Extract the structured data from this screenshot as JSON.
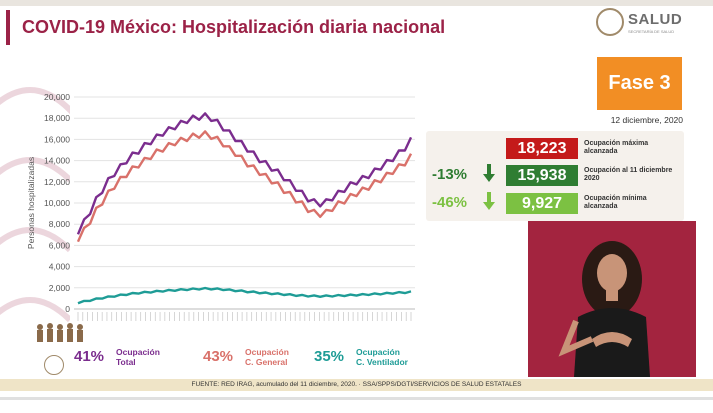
{
  "title": "COVID-19 México: Hospitalización diaria nacional",
  "logo": {
    "word": "SALUD",
    "sub": "SECRETARÍA DE SALUD"
  },
  "phase": "Fase 3",
  "date": "12 diciembre, 2020",
  "stats": {
    "max": {
      "value": "18,223",
      "label": "Ocupación máxima alcanzada",
      "color": "#c41a1a"
    },
    "current": {
      "pct": "-13%",
      "value": "15,938",
      "label": "Ocupación al 11 diciembre 2020",
      "color": "#2f7d32"
    },
    "min": {
      "pct": "-46%",
      "value": "9,927",
      "label": "Ocupación mínima alcanzada",
      "color": "#7cc142"
    }
  },
  "legend": {
    "total": {
      "pct": "41%",
      "label1": "Ocupación",
      "label2": "Total",
      "color": "#7b2d8e"
    },
    "general": {
      "pct": "43%",
      "label1": "Ocupación",
      "label2": "C. General",
      "color": "#d9716a"
    },
    "vent": {
      "pct": "35%",
      "label1": "Ocupación",
      "label2": "C. Ventilador",
      "color": "#1e9c96"
    }
  },
  "footer": "FUENTE: RED IRAG, acumulado del 11 diciembre, 2020.  ·  SSA/SPPS/DGTI/SERVICIOS DE SALUD ESTATALES",
  "chart_data": {
    "type": "line",
    "ylabel": "Personas hospitalizadas",
    "xlabel": "",
    "ylim": [
      0,
      20000
    ],
    "yticks": [
      0,
      2000,
      4000,
      6000,
      8000,
      10000,
      12000,
      14000,
      16000,
      18000,
      20000
    ],
    "ytick_labels": [
      "0",
      "2,000",
      "4,000",
      "6,000",
      "8,000",
      "10,000",
      "12,000",
      "14,000",
      "16,000",
      "18,000",
      "20,000"
    ],
    "x_index_range": [
      0,
      100
    ],
    "grid": true,
    "series": [
      {
        "color": "#7b2d8e",
        "values": [
          7300,
          8200,
          9200,
          10300,
          11200,
          12100,
          12800,
          13400,
          14000,
          14500,
          14900,
          15400,
          15800,
          16200,
          16600,
          16900,
          17200,
          17500,
          17800,
          18000,
          18100,
          18200,
          18000,
          17600,
          17100,
          16600,
          16100,
          15600,
          15100,
          14600,
          14100,
          13700,
          13300,
          12900,
          12400,
          11900,
          11400,
          10900,
          10400,
          10100,
          9930,
          10100,
          10500,
          10900,
          11300,
          11700,
          12000,
          12300,
          12600,
          13000,
          13400,
          13800,
          14200,
          14700,
          15200,
          15938
        ]
      },
      {
        "color": "#d9716a",
        "values": [
          6600,
          7400,
          8300,
          9300,
          10100,
          10900,
          11600,
          12200,
          12700,
          13200,
          13600,
          14000,
          14400,
          14800,
          15100,
          15400,
          15700,
          15900,
          16100,
          16300,
          16400,
          16500,
          16300,
          16000,
          15600,
          15100,
          14700,
          14200,
          13700,
          13300,
          12900,
          12500,
          12100,
          11700,
          11200,
          10800,
          10300,
          9900,
          9400,
          9100,
          8950,
          9100,
          9500,
          9900,
          10200,
          10600,
          10900,
          11200,
          11500,
          11900,
          12200,
          12600,
          13000,
          13400,
          13800,
          14400
        ]
      },
      {
        "color": "#1e9c96",
        "values": [
          600,
          700,
          820,
          930,
          1040,
          1130,
          1220,
          1300,
          1380,
          1450,
          1510,
          1560,
          1610,
          1660,
          1700,
          1740,
          1780,
          1810,
          1840,
          1870,
          1900,
          1920,
          1910,
          1880,
          1840,
          1790,
          1740,
          1690,
          1640,
          1590,
          1540,
          1500,
          1460,
          1420,
          1380,
          1340,
          1300,
          1270,
          1240,
          1220,
          1210,
          1220,
          1240,
          1260,
          1280,
          1300,
          1320,
          1350,
          1380,
          1410,
          1440,
          1470,
          1500,
          1530,
          1560,
          1600
        ]
      }
    ]
  }
}
